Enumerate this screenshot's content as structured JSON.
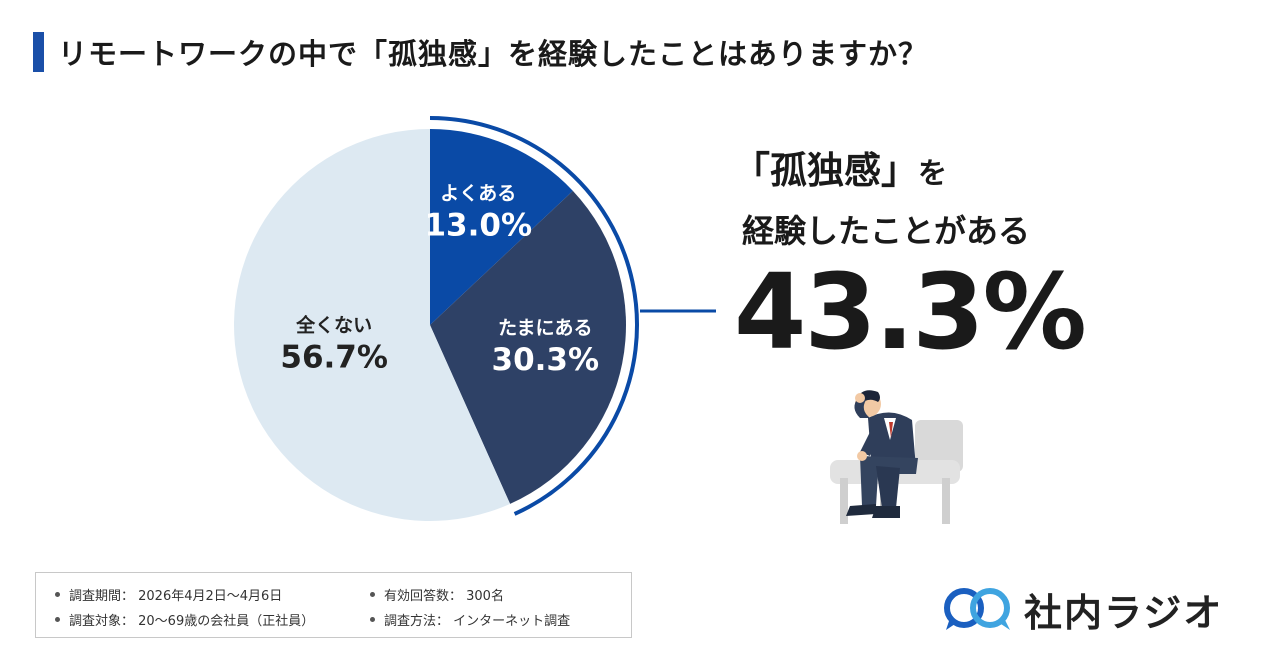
{
  "title": "リモートワークの中で「孤独感」を経験したことはありますか？",
  "chart_data": {
    "type": "pie",
    "title": "リモートワークの中で「孤独感」を経験したことはありますか？",
    "slices": [
      {
        "label": "よくある",
        "value": 13.0,
        "value_text": "13.0%",
        "color": "#0a4aa6"
      },
      {
        "label": "たまにある",
        "value": 30.3,
        "value_text": "30.3%",
        "color": "#2e4166"
      },
      {
        "label": "全くない",
        "value": 56.7,
        "value_text": "56.7%",
        "color": "#dde9f2"
      }
    ],
    "start": "12 o'clock",
    "direction": "clockwise",
    "highlight": {
      "slices": [
        "よくある",
        "たまにある"
      ],
      "color": "#0a4aa6"
    }
  },
  "callout": {
    "line1_main": "「孤独感」",
    "line1_suffix": "を",
    "line2": "経験したことがある",
    "big_value": "43.3%"
  },
  "notes": {
    "period": "調査期間： 2026年4月2日〜4月6日",
    "target": "調査対象： 20〜69歳の会社員（正社員）",
    "responses": "有効回答数： 300名",
    "method": "調査方法： インターネット調査"
  },
  "logo": {
    "text": "社内ラジオ",
    "icon": "speech-bubbles-icon"
  },
  "illustration": {
    "icon": "worried-businessman-on-chair-icon"
  },
  "colors": {
    "accent": "#1a4fa8",
    "navy": "#2e4166",
    "light": "#dde9f2"
  }
}
